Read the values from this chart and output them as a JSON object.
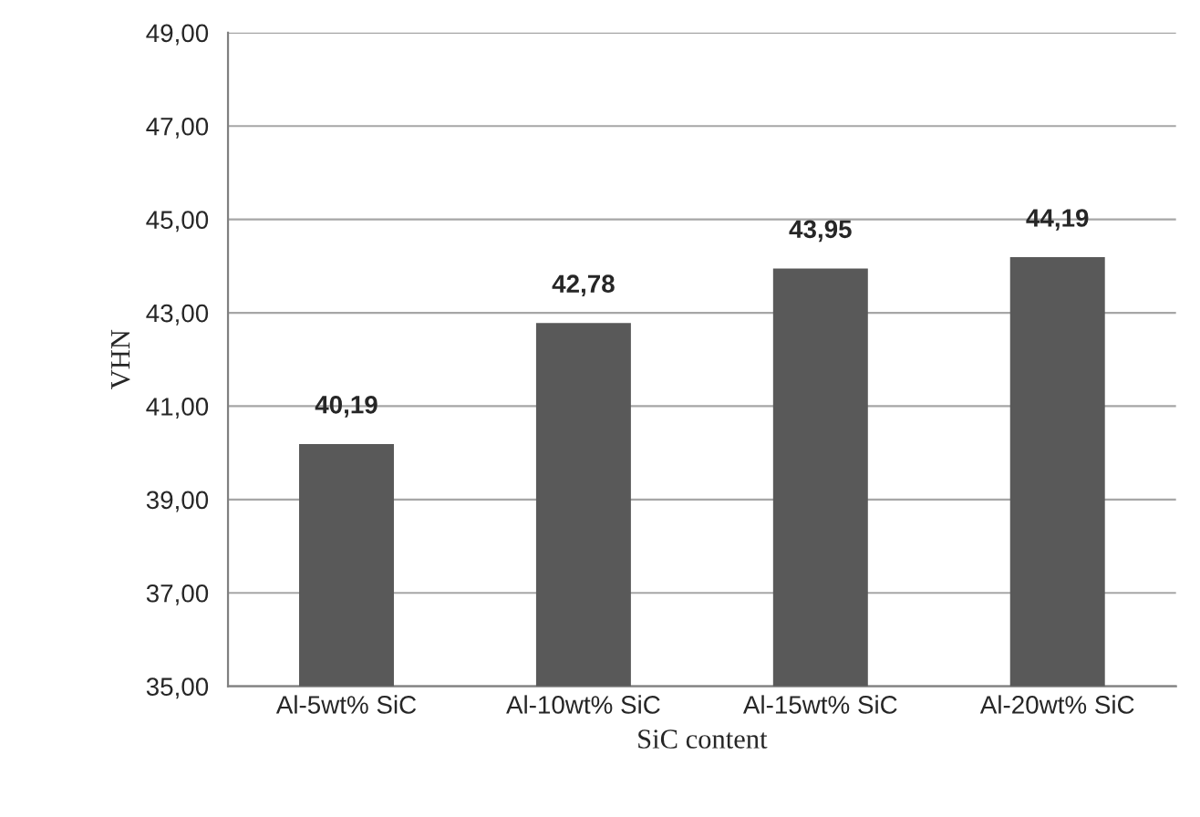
{
  "chart_data": {
    "type": "bar",
    "xlabel": "SiC content",
    "ylabel": "VHN",
    "categories": [
      "Al-5wt% SiC",
      "Al-10wt% SiC",
      "Al-15wt% SiC",
      "Al-20wt% SiC"
    ],
    "values": [
      40.19,
      42.78,
      43.95,
      44.19
    ],
    "value_labels": [
      "40,19",
      "42,78",
      "43,95",
      "44,19"
    ],
    "color": "#595959",
    "ylim": [
      35,
      49
    ],
    "yticks": [
      {
        "value": 35,
        "label": "35,00"
      },
      {
        "value": 37,
        "label": "37,00"
      },
      {
        "value": 39,
        "label": "39,00"
      },
      {
        "value": 41,
        "label": "41,00"
      },
      {
        "value": 43,
        "label": "43,00"
      },
      {
        "value": 45,
        "label": "45,00"
      },
      {
        "value": 47,
        "label": "47,00"
      },
      {
        "value": 49,
        "label": "49,00"
      }
    ],
    "grid": "y"
  }
}
